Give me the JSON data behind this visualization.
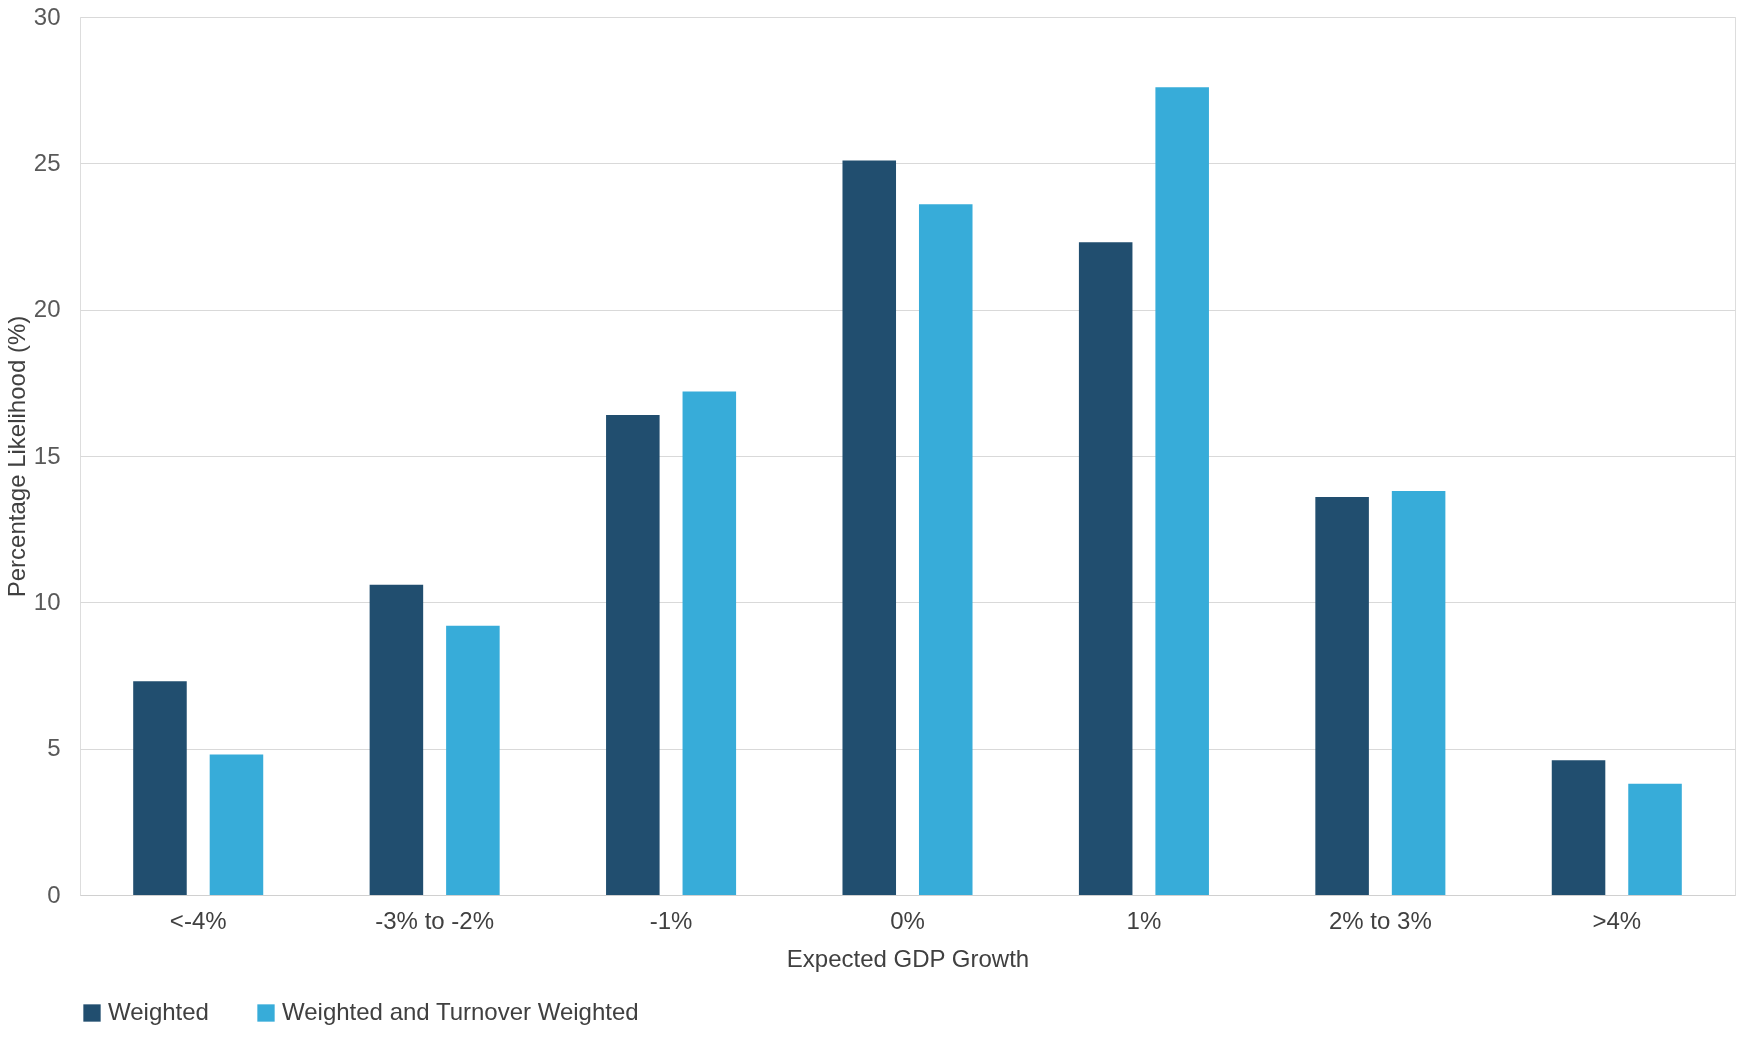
{
  "chart_data": {
    "type": "bar",
    "xlabel": "Expected GDP Growth",
    "ylabel": "Percentage Likelihood (%)",
    "categories": [
      "<-4%",
      "-3% to -2%",
      "-1%",
      "0%",
      "1%",
      "2% to 3%",
      ">4%"
    ],
    "series": [
      {
        "name": "Weighted",
        "color": "#214e6f",
        "values": [
          7.3,
          10.6,
          16.4,
          25.1,
          22.3,
          13.6,
          4.6
        ]
      },
      {
        "name": "Weighted and Turnover Weighted",
        "color": "#37acd9",
        "values": [
          4.8,
          9.2,
          17.2,
          23.6,
          27.6,
          13.8,
          3.8
        ]
      }
    ],
    "ylim": [
      0,
      30
    ],
    "yticks": [
      0,
      5,
      10,
      15,
      20,
      25,
      30
    ],
    "grid": "y",
    "legend": "bottom"
  }
}
